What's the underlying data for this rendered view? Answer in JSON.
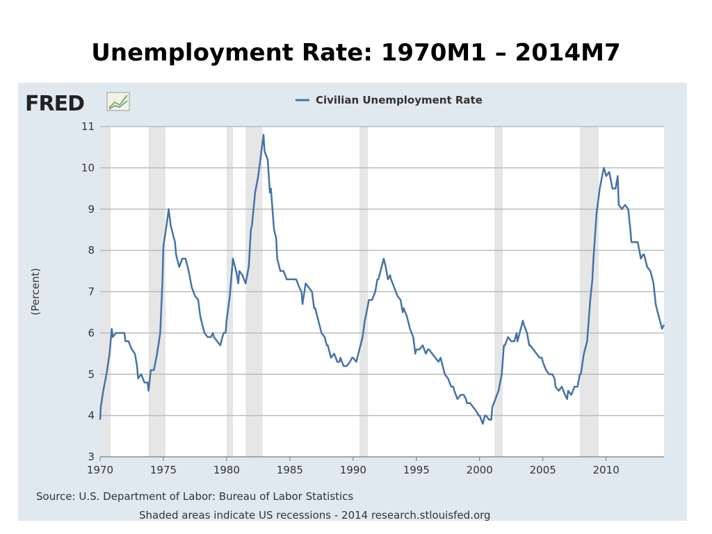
{
  "slide_title": "Unemployment Rate:  1970M1 – 2014M7",
  "logo_text": "FRED",
  "logo_icon": "line-chart-icon",
  "footer": {
    "source": "Source: U.S. Department of Labor: Bureau of Labor Statistics",
    "note": "Shaded areas indicate US recessions - 2014 research.stlouisfed.org"
  },
  "colors": {
    "series": "#4572a7",
    "recession": "#e6e6e6",
    "panel": "#e1e9f0",
    "plot": "#ffffff",
    "grid": "#bbbbbb"
  },
  "chart_data": {
    "type": "line",
    "title": "",
    "xlabel": "",
    "ylabel": "(Percent)",
    "xlim": [
      1970.0,
      2014.58
    ],
    "ylim": [
      3,
      11
    ],
    "yticks": [
      3,
      4,
      5,
      6,
      7,
      8,
      9,
      10,
      11
    ],
    "xticks": [
      1970,
      1975,
      1980,
      1985,
      1990,
      1995,
      2000,
      2005,
      2010
    ],
    "grid": true,
    "legend_position": "top-center",
    "recessions": [
      [
        1970.0,
        1970.83
      ],
      [
        1973.83,
        1975.17
      ],
      [
        1980.0,
        1980.5
      ],
      [
        1981.5,
        1982.83
      ],
      [
        1990.5,
        1991.17
      ],
      [
        2001.17,
        2001.83
      ],
      [
        2007.92,
        2009.42
      ]
    ],
    "series": [
      {
        "name": "Civilian Unemployment Rate",
        "points": [
          [
            1970.0,
            3.9
          ],
          [
            1970.05,
            4.2
          ],
          [
            1970.25,
            4.6
          ],
          [
            1970.5,
            5.0
          ],
          [
            1970.75,
            5.5
          ],
          [
            1970.92,
            6.1
          ],
          [
            1971.0,
            5.9
          ],
          [
            1971.25,
            6.0
          ],
          [
            1971.5,
            6.0
          ],
          [
            1971.75,
            6.0
          ],
          [
            1971.92,
            6.0
          ],
          [
            1972.0,
            5.8
          ],
          [
            1972.25,
            5.8
          ],
          [
            1972.5,
            5.6
          ],
          [
            1972.75,
            5.5
          ],
          [
            1972.92,
            5.2
          ],
          [
            1973.0,
            4.9
          ],
          [
            1973.25,
            5.0
          ],
          [
            1973.5,
            4.8
          ],
          [
            1973.75,
            4.8
          ],
          [
            1973.83,
            4.6
          ],
          [
            1974.0,
            5.1
          ],
          [
            1974.25,
            5.1
          ],
          [
            1974.5,
            5.5
          ],
          [
            1974.75,
            6.0
          ],
          [
            1974.92,
            7.2
          ],
          [
            1975.0,
            8.1
          ],
          [
            1975.25,
            8.6
          ],
          [
            1975.42,
            9.0
          ],
          [
            1975.58,
            8.6
          ],
          [
            1975.75,
            8.4
          ],
          [
            1975.92,
            8.2
          ],
          [
            1976.0,
            7.9
          ],
          [
            1976.25,
            7.6
          ],
          [
            1976.5,
            7.8
          ],
          [
            1976.75,
            7.8
          ],
          [
            1976.92,
            7.6
          ],
          [
            1977.0,
            7.5
          ],
          [
            1977.25,
            7.1
          ],
          [
            1977.5,
            6.9
          ],
          [
            1977.75,
            6.8
          ],
          [
            1977.92,
            6.4
          ],
          [
            1978.0,
            6.3
          ],
          [
            1978.25,
            6.0
          ],
          [
            1978.5,
            5.9
          ],
          [
            1978.75,
            5.9
          ],
          [
            1978.92,
            6.0
          ],
          [
            1979.0,
            5.9
          ],
          [
            1979.25,
            5.8
          ],
          [
            1979.5,
            5.7
          ],
          [
            1979.75,
            6.0
          ],
          [
            1979.92,
            6.0
          ],
          [
            1980.0,
            6.3
          ],
          [
            1980.25,
            6.9
          ],
          [
            1980.5,
            7.8
          ],
          [
            1980.58,
            7.7
          ],
          [
            1980.75,
            7.5
          ],
          [
            1980.92,
            7.2
          ],
          [
            1981.0,
            7.5
          ],
          [
            1981.25,
            7.4
          ],
          [
            1981.5,
            7.2
          ],
          [
            1981.75,
            7.6
          ],
          [
            1981.92,
            8.5
          ],
          [
            1982.0,
            8.6
          ],
          [
            1982.25,
            9.4
          ],
          [
            1982.5,
            9.8
          ],
          [
            1982.75,
            10.4
          ],
          [
            1982.92,
            10.8
          ],
          [
            1983.0,
            10.4
          ],
          [
            1983.25,
            10.2
          ],
          [
            1983.42,
            9.4
          ],
          [
            1983.5,
            9.5
          ],
          [
            1983.75,
            8.5
          ],
          [
            1983.92,
            8.3
          ],
          [
            1984.0,
            7.8
          ],
          [
            1984.25,
            7.5
          ],
          [
            1984.5,
            7.5
          ],
          [
            1984.75,
            7.3
          ],
          [
            1984.92,
            7.3
          ],
          [
            1985.0,
            7.3
          ],
          [
            1985.25,
            7.3
          ],
          [
            1985.5,
            7.3
          ],
          [
            1985.75,
            7.1
          ],
          [
            1985.92,
            7.0
          ],
          [
            1986.0,
            6.7
          ],
          [
            1986.25,
            7.2
          ],
          [
            1986.5,
            7.1
          ],
          [
            1986.75,
            7.0
          ],
          [
            1986.92,
            6.6
          ],
          [
            1987.0,
            6.6
          ],
          [
            1987.25,
            6.3
          ],
          [
            1987.5,
            6.0
          ],
          [
            1987.75,
            5.9
          ],
          [
            1987.92,
            5.7
          ],
          [
            1988.0,
            5.7
          ],
          [
            1988.25,
            5.4
          ],
          [
            1988.5,
            5.5
          ],
          [
            1988.75,
            5.3
          ],
          [
            1988.92,
            5.3
          ],
          [
            1989.0,
            5.4
          ],
          [
            1989.25,
            5.2
          ],
          [
            1989.5,
            5.2
          ],
          [
            1989.75,
            5.3
          ],
          [
            1989.92,
            5.4
          ],
          [
            1990.0,
            5.4
          ],
          [
            1990.25,
            5.3
          ],
          [
            1990.5,
            5.6
          ],
          [
            1990.75,
            5.9
          ],
          [
            1990.92,
            6.3
          ],
          [
            1991.0,
            6.4
          ],
          [
            1991.25,
            6.8
          ],
          [
            1991.5,
            6.8
          ],
          [
            1991.75,
            7.0
          ],
          [
            1991.92,
            7.3
          ],
          [
            1992.0,
            7.3
          ],
          [
            1992.25,
            7.6
          ],
          [
            1992.42,
            7.8
          ],
          [
            1992.58,
            7.6
          ],
          [
            1992.75,
            7.3
          ],
          [
            1992.92,
            7.4
          ],
          [
            1993.0,
            7.3
          ],
          [
            1993.25,
            7.1
          ],
          [
            1993.5,
            6.9
          ],
          [
            1993.75,
            6.8
          ],
          [
            1993.92,
            6.5
          ],
          [
            1994.0,
            6.6
          ],
          [
            1994.25,
            6.4
          ],
          [
            1994.5,
            6.1
          ],
          [
            1994.75,
            5.9
          ],
          [
            1994.92,
            5.5
          ],
          [
            1995.0,
            5.6
          ],
          [
            1995.25,
            5.6
          ],
          [
            1995.5,
            5.7
          ],
          [
            1995.75,
            5.5
          ],
          [
            1995.92,
            5.6
          ],
          [
            1996.0,
            5.6
          ],
          [
            1996.25,
            5.5
          ],
          [
            1996.5,
            5.4
          ],
          [
            1996.75,
            5.3
          ],
          [
            1996.92,
            5.4
          ],
          [
            1997.0,
            5.3
          ],
          [
            1997.25,
            5.0
          ],
          [
            1997.5,
            4.9
          ],
          [
            1997.75,
            4.7
          ],
          [
            1997.92,
            4.7
          ],
          [
            1998.0,
            4.6
          ],
          [
            1998.25,
            4.4
          ],
          [
            1998.5,
            4.5
          ],
          [
            1998.75,
            4.5
          ],
          [
            1998.92,
            4.4
          ],
          [
            1999.0,
            4.3
          ],
          [
            1999.25,
            4.3
          ],
          [
            1999.5,
            4.2
          ],
          [
            1999.75,
            4.1
          ],
          [
            1999.92,
            4.0
          ],
          [
            2000.0,
            4.0
          ],
          [
            2000.25,
            3.8
          ],
          [
            2000.42,
            4.0
          ],
          [
            2000.5,
            4.0
          ],
          [
            2000.75,
            3.9
          ],
          [
            2000.92,
            3.9
          ],
          [
            2001.0,
            4.2
          ],
          [
            2001.25,
            4.4
          ],
          [
            2001.5,
            4.6
          ],
          [
            2001.75,
            5.0
          ],
          [
            2001.92,
            5.7
          ],
          [
            2002.0,
            5.7
          ],
          [
            2002.25,
            5.9
          ],
          [
            2002.5,
            5.8
          ],
          [
            2002.75,
            5.8
          ],
          [
            2002.92,
            6.0
          ],
          [
            2003.0,
            5.8
          ],
          [
            2003.25,
            6.1
          ],
          [
            2003.42,
            6.3
          ],
          [
            2003.5,
            6.2
          ],
          [
            2003.75,
            6.0
          ],
          [
            2003.92,
            5.7
          ],
          [
            2004.0,
            5.7
          ],
          [
            2004.25,
            5.6
          ],
          [
            2004.5,
            5.5
          ],
          [
            2004.75,
            5.4
          ],
          [
            2004.92,
            5.4
          ],
          [
            2005.0,
            5.3
          ],
          [
            2005.25,
            5.1
          ],
          [
            2005.5,
            5.0
          ],
          [
            2005.75,
            5.0
          ],
          [
            2005.92,
            4.9
          ],
          [
            2006.0,
            4.7
          ],
          [
            2006.25,
            4.6
          ],
          [
            2006.5,
            4.7
          ],
          [
            2006.75,
            4.5
          ],
          [
            2006.92,
            4.4
          ],
          [
            2007.0,
            4.6
          ],
          [
            2007.25,
            4.5
          ],
          [
            2007.5,
            4.7
          ],
          [
            2007.75,
            4.7
          ],
          [
            2007.92,
            5.0
          ],
          [
            2008.0,
            5.0
          ],
          [
            2008.25,
            5.5
          ],
          [
            2008.5,
            5.8
          ],
          [
            2008.75,
            6.8
          ],
          [
            2008.92,
            7.3
          ],
          [
            2009.0,
            7.8
          ],
          [
            2009.25,
            8.9
          ],
          [
            2009.5,
            9.5
          ],
          [
            2009.75,
            9.9
          ],
          [
            2009.83,
            10.0
          ],
          [
            2010.0,
            9.8
          ],
          [
            2010.25,
            9.9
          ],
          [
            2010.5,
            9.5
          ],
          [
            2010.75,
            9.5
          ],
          [
            2010.92,
            9.8
          ],
          [
            2011.0,
            9.1
          ],
          [
            2011.25,
            9.0
          ],
          [
            2011.5,
            9.1
          ],
          [
            2011.75,
            9.0
          ],
          [
            2011.92,
            8.5
          ],
          [
            2012.0,
            8.2
          ],
          [
            2012.25,
            8.2
          ],
          [
            2012.5,
            8.2
          ],
          [
            2012.75,
            7.8
          ],
          [
            2012.92,
            7.9
          ],
          [
            2013.0,
            7.9
          ],
          [
            2013.25,
            7.6
          ],
          [
            2013.5,
            7.5
          ],
          [
            2013.75,
            7.2
          ],
          [
            2013.92,
            6.7
          ],
          [
            2014.0,
            6.6
          ],
          [
            2014.25,
            6.3
          ],
          [
            2014.42,
            6.1
          ],
          [
            2014.58,
            6.2
          ]
        ]
      }
    ]
  }
}
